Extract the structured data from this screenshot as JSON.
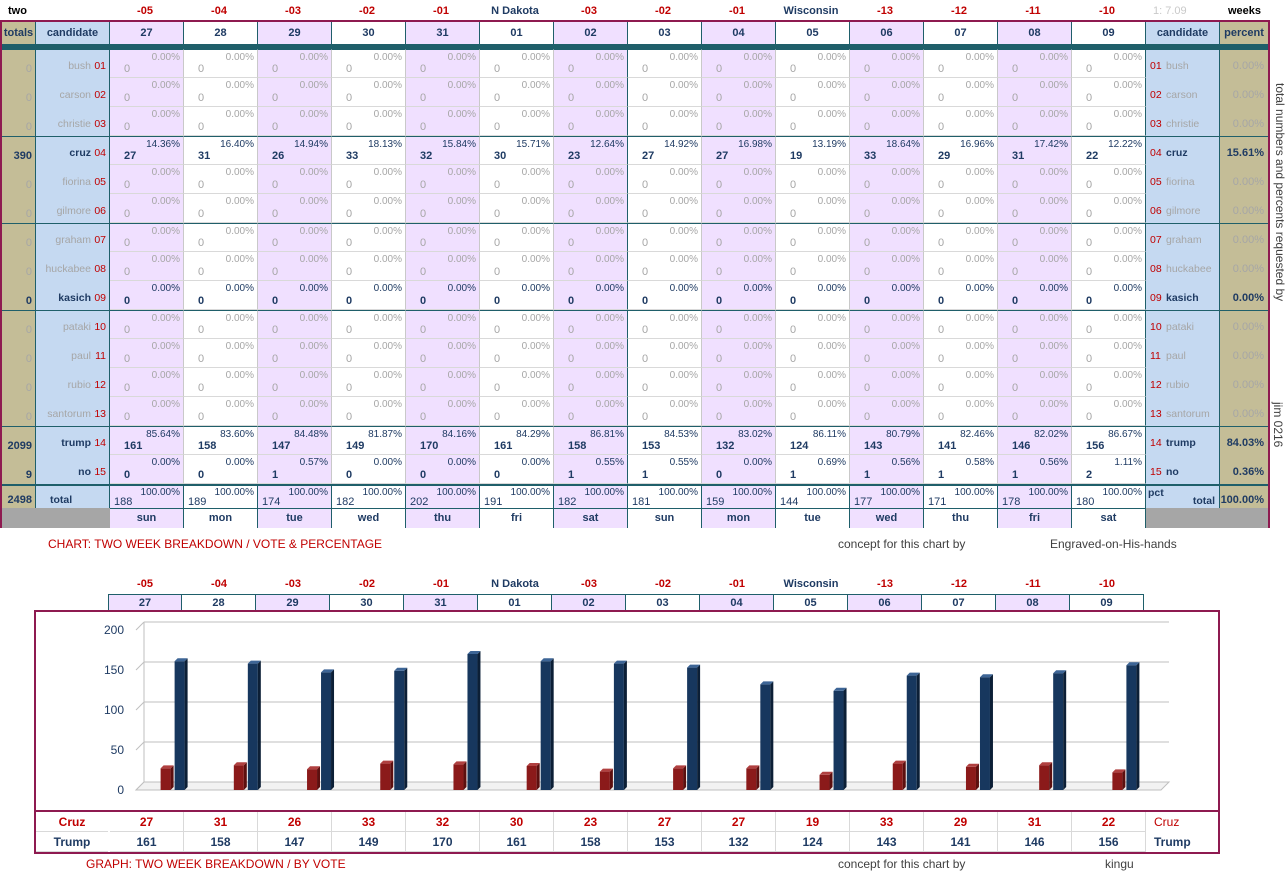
{
  "top_labels": {
    "left": "two",
    "right": "weeks",
    "version": "1: 7.09",
    "days": [
      "-05",
      "-04",
      "-03",
      "-02",
      "-01",
      "N Dakota",
      "-03",
      "-02",
      "-01",
      "Wisconsin",
      "-13",
      "-12",
      "-11",
      "-10"
    ],
    "day_colors": [
      "red",
      "red",
      "red",
      "red",
      "red",
      "navy",
      "red",
      "red",
      "red",
      "navy",
      "red",
      "red",
      "red",
      "red"
    ]
  },
  "table": {
    "totals_header": "totals",
    "candidate_header": "candidate",
    "percent_header": "percent",
    "dates": [
      "27",
      "28",
      "29",
      "30",
      "31",
      "01",
      "02",
      "03",
      "04",
      "05",
      "06",
      "07",
      "08",
      "09"
    ],
    "weekdays": [
      "sun",
      "mon",
      "tue",
      "wed",
      "thu",
      "fri",
      "sat",
      "sun",
      "mon",
      "tue",
      "wed",
      "thu",
      "fri",
      "sat"
    ],
    "candidates": [
      {
        "name": "bush",
        "num": "01",
        "total": "0",
        "percent": "0.00%",
        "active": false,
        "counts": [
          "0",
          "0",
          "0",
          "0",
          "0",
          "0",
          "0",
          "0",
          "0",
          "0",
          "0",
          "0",
          "0",
          "0"
        ],
        "pcts": [
          "0.00%",
          "0.00%",
          "0.00%",
          "0.00%",
          "0.00%",
          "0.00%",
          "0.00%",
          "0.00%",
          "0.00%",
          "0.00%",
          "0.00%",
          "0.00%",
          "0.00%",
          "0.00%"
        ]
      },
      {
        "name": "carson",
        "num": "02",
        "total": "0",
        "percent": "0.00%",
        "active": false,
        "counts": [
          "0",
          "0",
          "0",
          "0",
          "0",
          "0",
          "0",
          "0",
          "0",
          "0",
          "0",
          "0",
          "0",
          "0"
        ],
        "pcts": [
          "0.00%",
          "0.00%",
          "0.00%",
          "0.00%",
          "0.00%",
          "0.00%",
          "0.00%",
          "0.00%",
          "0.00%",
          "0.00%",
          "0.00%",
          "0.00%",
          "0.00%",
          "0.00%"
        ]
      },
      {
        "name": "christie",
        "num": "03",
        "total": "0",
        "percent": "0.00%",
        "active": false,
        "counts": [
          "0",
          "0",
          "0",
          "0",
          "0",
          "0",
          "0",
          "0",
          "0",
          "0",
          "0",
          "0",
          "0",
          "0"
        ],
        "pcts": [
          "0.00%",
          "0.00%",
          "0.00%",
          "0.00%",
          "0.00%",
          "0.00%",
          "0.00%",
          "0.00%",
          "0.00%",
          "0.00%",
          "0.00%",
          "0.00%",
          "0.00%",
          "0.00%"
        ]
      },
      {
        "name": "cruz",
        "num": "04",
        "total": "390",
        "percent": "15.61%",
        "active": true,
        "counts": [
          "27",
          "31",
          "26",
          "33",
          "32",
          "30",
          "23",
          "27",
          "27",
          "19",
          "33",
          "29",
          "31",
          "22"
        ],
        "pcts": [
          "14.36%",
          "16.40%",
          "14.94%",
          "18.13%",
          "15.84%",
          "15.71%",
          "12.64%",
          "14.92%",
          "16.98%",
          "13.19%",
          "18.64%",
          "16.96%",
          "17.42%",
          "12.22%"
        ]
      },
      {
        "name": "fiorina",
        "num": "05",
        "total": "0",
        "percent": "0.00%",
        "active": false,
        "counts": [
          "0",
          "0",
          "0",
          "0",
          "0",
          "0",
          "0",
          "0",
          "0",
          "0",
          "0",
          "0",
          "0",
          "0"
        ],
        "pcts": [
          "0.00%",
          "0.00%",
          "0.00%",
          "0.00%",
          "0.00%",
          "0.00%",
          "0.00%",
          "0.00%",
          "0.00%",
          "0.00%",
          "0.00%",
          "0.00%",
          "0.00%",
          "0.00%"
        ]
      },
      {
        "name": "gilmore",
        "num": "06",
        "total": "0",
        "percent": "0.00%",
        "active": false,
        "counts": [
          "0",
          "0",
          "0",
          "0",
          "0",
          "0",
          "0",
          "0",
          "0",
          "0",
          "0",
          "0",
          "0",
          "0"
        ],
        "pcts": [
          "0.00%",
          "0.00%",
          "0.00%",
          "0.00%",
          "0.00%",
          "0.00%",
          "0.00%",
          "0.00%",
          "0.00%",
          "0.00%",
          "0.00%",
          "0.00%",
          "0.00%",
          "0.00%"
        ]
      },
      {
        "name": "graham",
        "num": "07",
        "total": "0",
        "percent": "0.00%",
        "active": false,
        "counts": [
          "0",
          "0",
          "0",
          "0",
          "0",
          "0",
          "0",
          "0",
          "0",
          "0",
          "0",
          "0",
          "0",
          "0"
        ],
        "pcts": [
          "0.00%",
          "0.00%",
          "0.00%",
          "0.00%",
          "0.00%",
          "0.00%",
          "0.00%",
          "0.00%",
          "0.00%",
          "0.00%",
          "0.00%",
          "0.00%",
          "0.00%",
          "0.00%"
        ]
      },
      {
        "name": "huckabee",
        "num": "08",
        "total": "0",
        "percent": "0.00%",
        "active": false,
        "counts": [
          "0",
          "0",
          "0",
          "0",
          "0",
          "0",
          "0",
          "0",
          "0",
          "0",
          "0",
          "0",
          "0",
          "0"
        ],
        "pcts": [
          "0.00%",
          "0.00%",
          "0.00%",
          "0.00%",
          "0.00%",
          "0.00%",
          "0.00%",
          "0.00%",
          "0.00%",
          "0.00%",
          "0.00%",
          "0.00%",
          "0.00%",
          "0.00%"
        ]
      },
      {
        "name": "kasich",
        "num": "09",
        "total": "0",
        "percent": "0.00%",
        "active": true,
        "counts": [
          "0",
          "0",
          "0",
          "0",
          "0",
          "0",
          "0",
          "0",
          "0",
          "0",
          "0",
          "0",
          "0",
          "0"
        ],
        "pcts": [
          "0.00%",
          "0.00%",
          "0.00%",
          "0.00%",
          "0.00%",
          "0.00%",
          "0.00%",
          "0.00%",
          "0.00%",
          "0.00%",
          "0.00%",
          "0.00%",
          "0.00%",
          "0.00%"
        ]
      },
      {
        "name": "pataki",
        "num": "10",
        "total": "0",
        "percent": "0.00%",
        "active": false,
        "counts": [
          "0",
          "0",
          "0",
          "0",
          "0",
          "0",
          "0",
          "0",
          "0",
          "0",
          "0",
          "0",
          "0",
          "0"
        ],
        "pcts": [
          "0.00%",
          "0.00%",
          "0.00%",
          "0.00%",
          "0.00%",
          "0.00%",
          "0.00%",
          "0.00%",
          "0.00%",
          "0.00%",
          "0.00%",
          "0.00%",
          "0.00%",
          "0.00%"
        ]
      },
      {
        "name": "paul",
        "num": "11",
        "total": "0",
        "percent": "0.00%",
        "active": false,
        "counts": [
          "0",
          "0",
          "0",
          "0",
          "0",
          "0",
          "0",
          "0",
          "0",
          "0",
          "0",
          "0",
          "0",
          "0"
        ],
        "pcts": [
          "0.00%",
          "0.00%",
          "0.00%",
          "0.00%",
          "0.00%",
          "0.00%",
          "0.00%",
          "0.00%",
          "0.00%",
          "0.00%",
          "0.00%",
          "0.00%",
          "0.00%",
          "0.00%"
        ]
      },
      {
        "name": "rubio",
        "num": "12",
        "total": "0",
        "percent": "0.00%",
        "active": false,
        "counts": [
          "0",
          "0",
          "0",
          "0",
          "0",
          "0",
          "0",
          "0",
          "0",
          "0",
          "0",
          "0",
          "0",
          "0"
        ],
        "pcts": [
          "0.00%",
          "0.00%",
          "0.00%",
          "0.00%",
          "0.00%",
          "0.00%",
          "0.00%",
          "0.00%",
          "0.00%",
          "0.00%",
          "0.00%",
          "0.00%",
          "0.00%",
          "0.00%"
        ]
      },
      {
        "name": "santorum",
        "num": "13",
        "total": "0",
        "percent": "0.00%",
        "active": false,
        "counts": [
          "0",
          "0",
          "0",
          "0",
          "0",
          "0",
          "0",
          "0",
          "0",
          "0",
          "0",
          "0",
          "0",
          "0"
        ],
        "pcts": [
          "0.00%",
          "0.00%",
          "0.00%",
          "0.00%",
          "0.00%",
          "0.00%",
          "0.00%",
          "0.00%",
          "0.00%",
          "0.00%",
          "0.00%",
          "0.00%",
          "0.00%",
          "0.00%"
        ]
      },
      {
        "name": "trump",
        "num": "14",
        "total": "2099",
        "percent": "84.03%",
        "active": true,
        "counts": [
          "161",
          "158",
          "147",
          "149",
          "170",
          "161",
          "158",
          "153",
          "132",
          "124",
          "143",
          "141",
          "146",
          "156"
        ],
        "pcts": [
          "85.64%",
          "83.60%",
          "84.48%",
          "81.87%",
          "84.16%",
          "84.29%",
          "86.81%",
          "84.53%",
          "83.02%",
          "86.11%",
          "80.79%",
          "82.46%",
          "82.02%",
          "86.67%"
        ]
      },
      {
        "name": "no",
        "num": "15",
        "total": "9",
        "percent": "0.36%",
        "active": true,
        "counts": [
          "0",
          "0",
          "1",
          "0",
          "0",
          "0",
          "1",
          "1",
          "0",
          "1",
          "1",
          "1",
          "1",
          "2"
        ],
        "pcts": [
          "0.00%",
          "0.00%",
          "0.57%",
          "0.00%",
          "0.00%",
          "0.00%",
          "0.55%",
          "0.55%",
          "0.00%",
          "0.69%",
          "0.56%",
          "0.58%",
          "0.56%",
          "1.11%"
        ]
      }
    ],
    "total_row": {
      "total": "2498",
      "label": "total",
      "pct_label": "pct",
      "percent": "100.00%",
      "counts": [
        "188",
        "189",
        "174",
        "182",
        "202",
        "191",
        "182",
        "181",
        "159",
        "144",
        "177",
        "171",
        "178",
        "180"
      ],
      "pcts": [
        "100.00%",
        "100.00%",
        "100.00%",
        "100.00%",
        "100.00%",
        "100.00%",
        "100.00%",
        "100.00%",
        "100.00%",
        "100.00%",
        "100.00%",
        "100.00%",
        "100.00%",
        "100.00%"
      ]
    }
  },
  "side_note": "total numbers and percents requested by",
  "side_author": "jim 0216",
  "chart_caption": "CHART: TWO WEEK BREAKDOWN / VOTE & PERCENTAGE",
  "chart_concept": "concept for this chart by",
  "chart_author": "Engraved-on-His-hands",
  "graph_caption": "GRAPH: TWO WEEK BREAKDOWN / BY VOTE",
  "graph_concept": "concept for this chart by",
  "graph_author": "kingu",
  "colors": {
    "border": "#8e1a50",
    "cruz": "#8b1a1a",
    "trump": "#17375e",
    "pink": "#f0e0ff",
    "blue": "#c5d9f1",
    "tan": "#c4bd97"
  },
  "chart_data": {
    "type": "bar",
    "categories": [
      "27",
      "28",
      "29",
      "30",
      "31",
      "01",
      "02",
      "03",
      "04",
      "05",
      "06",
      "07",
      "08",
      "09"
    ],
    "series": [
      {
        "name": "Cruz",
        "values": [
          27,
          31,
          26,
          33,
          32,
          30,
          23,
          27,
          27,
          19,
          33,
          29,
          31,
          22
        ]
      },
      {
        "name": "Trump",
        "values": [
          161,
          158,
          147,
          149,
          170,
          161,
          158,
          153,
          132,
          124,
          143,
          141,
          146,
          156
        ]
      }
    ],
    "ylim": [
      0,
      200
    ],
    "yticks": [
      "0",
      "50",
      "100",
      "150",
      "200"
    ],
    "grid": true,
    "legend": "table-below"
  }
}
